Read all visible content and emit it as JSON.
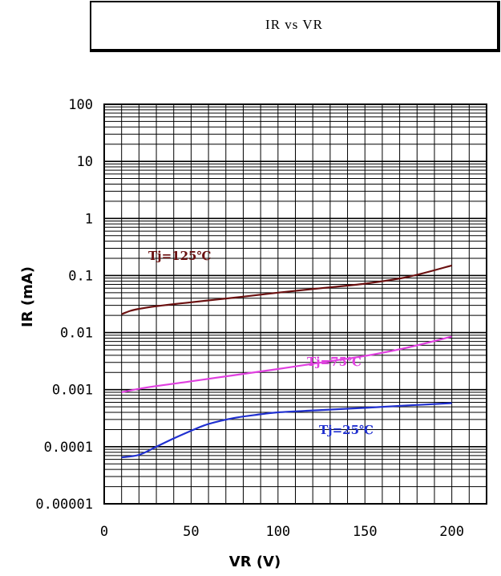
{
  "chart_data": {
    "type": "line",
    "title": "IR  vs  VR",
    "xlabel": "VR (V)",
    "ylabel": "IR (mA)",
    "x_scale": "linear",
    "y_scale": "log",
    "xlim": [
      0,
      220
    ],
    "ylim": [
      1e-05,
      100
    ],
    "x_ticks": [
      0,
      50,
      100,
      150,
      200
    ],
    "x_tick_labels": [
      "0",
      "50",
      "100",
      "150",
      "200"
    ],
    "y_ticks": [
      1e-05,
      0.0001,
      0.001,
      0.01,
      0.1,
      1,
      10,
      100
    ],
    "y_tick_labels": [
      "0.00001",
      "0.0001",
      "0.001",
      "0.01",
      "0.1",
      "1",
      "10",
      "100"
    ],
    "grid": true,
    "series": [
      {
        "name": "Tj=125℃",
        "color": "#6b1010",
        "x": [
          10,
          15,
          20,
          30,
          50,
          75,
          100,
          125,
          150,
          175,
          200
        ],
        "y": [
          0.021,
          0.024,
          0.026,
          0.029,
          0.034,
          0.041,
          0.05,
          0.06,
          0.072,
          0.095,
          0.15
        ]
      },
      {
        "name": "Tj=75℃",
        "color": "#e040e0",
        "x": [
          10,
          25,
          50,
          75,
          100,
          125,
          150,
          175,
          200
        ],
        "y": [
          0.0009,
          0.0011,
          0.0014,
          0.0018,
          0.0023,
          0.003,
          0.0039,
          0.0055,
          0.0085
        ]
      },
      {
        "name": "Tj=25℃",
        "color": "#2030d0",
        "x": [
          10,
          20,
          30,
          40,
          50,
          60,
          75,
          90,
          100,
          125,
          150,
          175,
          200
        ],
        "y": [
          6.5e-05,
          7.2e-05,
          0.0001,
          0.00014,
          0.00019,
          0.00025,
          0.00032,
          0.00037,
          0.0004,
          0.00044,
          0.00048,
          0.00053,
          0.00058
        ]
      }
    ]
  }
}
